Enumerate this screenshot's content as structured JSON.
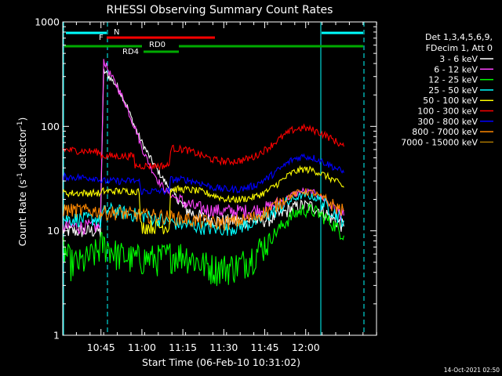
{
  "chart_data": {
    "type": "line",
    "title": "RHESSI Observing Summary Count Rates",
    "xlabel": "Start Time (06-Feb-10 10:31:02)",
    "ylabel_prefix": "Count Rate (s",
    "ylabel_sup": "-1",
    "ylabel_mid": " detector",
    "ylabel_end": ")",
    "y_scale": "log",
    "ylim": [
      1,
      1000
    ],
    "xlim_minutes": [
      0,
      115
    ],
    "x_ticks": [
      {
        "min": 14,
        "label": "10:45"
      },
      {
        "min": 29,
        "label": "11:00"
      },
      {
        "min": 44,
        "label": "11:15"
      },
      {
        "min": 59,
        "label": "11:30"
      },
      {
        "min": 74,
        "label": "11:45"
      },
      {
        "min": 89,
        "label": "12:00"
      }
    ],
    "y_ticks": [
      {
        "v": 1,
        "label": "1"
      },
      {
        "v": 10,
        "label": "10"
      },
      {
        "v": 100,
        "label": "100"
      },
      {
        "v": 1000,
        "label": "1000"
      }
    ],
    "legend_header": [
      "Det 1,3,4,5,6,9,",
      "FDecim 1, Att 0"
    ],
    "series": [
      {
        "name": "3 - 6 keV",
        "color": "#ffffff",
        "points": [
          [
            0,
            10
          ],
          [
            13,
            10
          ],
          [
            13.8,
            9.5
          ],
          [
            14.5,
            85
          ],
          [
            15,
            340
          ],
          [
            17,
            300
          ],
          [
            20,
            240
          ],
          [
            23,
            170
          ],
          [
            26,
            105
          ],
          [
            29,
            70
          ],
          [
            32,
            50
          ],
          [
            35,
            37
          ],
          [
            38,
            28
          ],
          [
            41,
            22
          ],
          [
            44,
            17
          ],
          [
            48,
            14.5
          ],
          [
            53,
            13
          ],
          [
            58,
            12.5
          ],
          [
            63,
            12.5
          ],
          [
            68,
            12.5
          ],
          [
            72,
            12.5
          ],
          [
            76,
            13
          ],
          [
            80,
            14.5
          ],
          [
            84,
            16.5
          ],
          [
            88,
            17.5
          ],
          [
            92,
            17
          ],
          [
            96,
            15
          ],
          [
            100,
            12.5
          ],
          [
            103,
            11
          ]
        ]
      },
      {
        "name": "6 - 12 keV",
        "color": "#ff44ff",
        "points": [
          [
            0,
            11
          ],
          [
            13,
            11
          ],
          [
            13.8,
            10.5
          ],
          [
            14.5,
            110
          ],
          [
            15,
            430
          ],
          [
            17,
            330
          ],
          [
            20,
            240
          ],
          [
            23,
            165
          ],
          [
            25,
            120
          ],
          [
            27,
            90
          ],
          [
            29,
            62
          ],
          [
            32,
            42
          ],
          [
            35,
            30
          ],
          [
            38,
            24
          ],
          [
            41,
            21
          ],
          [
            44,
            19
          ],
          [
            48,
            17
          ],
          [
            53,
            16
          ],
          [
            58,
            15.5
          ],
          [
            63,
            15.5
          ],
          [
            68,
            15.5
          ],
          [
            72,
            16
          ],
          [
            76,
            17
          ],
          [
            80,
            19
          ],
          [
            84,
            22
          ],
          [
            88,
            24
          ],
          [
            92,
            23
          ],
          [
            96,
            20
          ],
          [
            100,
            16
          ],
          [
            103,
            14
          ]
        ]
      },
      {
        "name": "12 - 25 keV",
        "color": "#00ff00",
        "points": [
          [
            0,
            7
          ],
          [
            3,
            5
          ],
          [
            7,
            5
          ],
          [
            13,
            6.5
          ],
          [
            14,
            7.5
          ],
          [
            17,
            7
          ],
          [
            20,
            6
          ],
          [
            25,
            5.5
          ],
          [
            30,
            5.5
          ],
          [
            35,
            5.5
          ],
          [
            40,
            6
          ],
          [
            45,
            6
          ],
          [
            50,
            5
          ],
          [
            55,
            4.5
          ],
          [
            60,
            4.5
          ],
          [
            65,
            4.8
          ],
          [
            70,
            6
          ],
          [
            75,
            8
          ],
          [
            80,
            11
          ],
          [
            84,
            14
          ],
          [
            88,
            16
          ],
          [
            92,
            15.5
          ],
          [
            96,
            13.5
          ],
          [
            100,
            11
          ],
          [
            103,
            9
          ]
        ]
      },
      {
        "name": "25 - 50 keV",
        "color": "#00ffff",
        "points": [
          [
            0,
            13
          ],
          [
            13,
            13
          ],
          [
            13.8,
            12
          ],
          [
            14.5,
            15
          ],
          [
            17,
            16
          ],
          [
            20,
            15.5
          ],
          [
            25,
            14.5
          ],
          [
            30,
            14
          ],
          [
            35,
            13
          ],
          [
            40,
            12
          ],
          [
            45,
            11.5
          ],
          [
            50,
            11
          ],
          [
            55,
            10.5
          ],
          [
            60,
            10.5
          ],
          [
            65,
            11
          ],
          [
            70,
            12
          ],
          [
            75,
            14
          ],
          [
            80,
            17
          ],
          [
            84,
            20
          ],
          [
            88,
            22
          ],
          [
            92,
            21
          ],
          [
            96,
            18
          ],
          [
            100,
            14.5
          ],
          [
            103,
            12.5
          ]
        ]
      },
      {
        "name": "50 - 100 keV",
        "color": "#ffff00",
        "points": [
          [
            0,
            23
          ],
          [
            13,
            23
          ],
          [
            13.8,
            22
          ],
          [
            14.5,
            24
          ],
          [
            28,
            24
          ],
          [
            28.5,
            11
          ],
          [
            39,
            11
          ],
          [
            39.5,
            25
          ],
          [
            45,
            25
          ],
          [
            50,
            24
          ],
          [
            55,
            22
          ],
          [
            60,
            20
          ],
          [
            65,
            20
          ],
          [
            70,
            21
          ],
          [
            75,
            24
          ],
          [
            80,
            30
          ],
          [
            84,
            36
          ],
          [
            88,
            39
          ],
          [
            92,
            38
          ],
          [
            96,
            34
          ],
          [
            100,
            30
          ],
          [
            103,
            26
          ]
        ]
      },
      {
        "name": "100 - 300 keV",
        "color": "#ff0000",
        "points": [
          [
            0,
            60
          ],
          [
            13,
            57
          ],
          [
            13.8,
            55
          ],
          [
            14.5,
            52
          ],
          [
            26,
            52
          ],
          [
            26.5,
            42
          ],
          [
            39,
            42
          ],
          [
            39.5,
            62
          ],
          [
            45,
            60
          ],
          [
            50,
            54
          ],
          [
            55,
            48
          ],
          [
            60,
            46
          ],
          [
            65,
            47
          ],
          [
            70,
            51
          ],
          [
            75,
            62
          ],
          [
            80,
            78
          ],
          [
            84,
            92
          ],
          [
            88,
            97
          ],
          [
            92,
            92
          ],
          [
            96,
            83
          ],
          [
            100,
            72
          ],
          [
            103,
            64
          ]
        ]
      },
      {
        "name": "300 - 800 keV",
        "color": "#0000ff",
        "points": [
          [
            0,
            33
          ],
          [
            13,
            32
          ],
          [
            14,
            30
          ],
          [
            28,
            30
          ],
          [
            28.5,
            24
          ],
          [
            39,
            24
          ],
          [
            39.5,
            31
          ],
          [
            45,
            31
          ],
          [
            50,
            29
          ],
          [
            55,
            26
          ],
          [
            60,
            25
          ],
          [
            65,
            25
          ],
          [
            70,
            27
          ],
          [
            75,
            32
          ],
          [
            80,
            40
          ],
          [
            84,
            48
          ],
          [
            88,
            52
          ],
          [
            92,
            50
          ],
          [
            96,
            45
          ],
          [
            100,
            40
          ],
          [
            103,
            36
          ]
        ]
      },
      {
        "name": "800 - 7000 keV",
        "color": "#ff8800",
        "points": [
          [
            0,
            16
          ],
          [
            13,
            15.5
          ],
          [
            14,
            15
          ],
          [
            20,
            15
          ],
          [
            25,
            14.5
          ],
          [
            30,
            14
          ],
          [
            35,
            14
          ],
          [
            40,
            13.5
          ],
          [
            45,
            13
          ],
          [
            50,
            12.5
          ],
          [
            55,
            12
          ],
          [
            60,
            12
          ],
          [
            65,
            12.5
          ],
          [
            70,
            13.5
          ],
          [
            75,
            15.5
          ],
          [
            80,
            19
          ],
          [
            84,
            22
          ],
          [
            88,
            24
          ],
          [
            92,
            23
          ],
          [
            96,
            20
          ],
          [
            100,
            17
          ],
          [
            103,
            15.5
          ]
        ]
      },
      {
        "name": "7000 - 15000 keV",
        "color": "#aa7700",
        "points": []
      }
    ],
    "annotations": {
      "N": {
        "label": "N",
        "color": "#00ffff"
      },
      "F": {
        "label": "F",
        "color": "#ff0000"
      },
      "RD0": {
        "label": "RD0",
        "color": "#00aa00"
      },
      "RD4": {
        "label": "RD4",
        "color": "#00aa00"
      }
    },
    "timestamp": "14-Oct-2021 02:50"
  }
}
